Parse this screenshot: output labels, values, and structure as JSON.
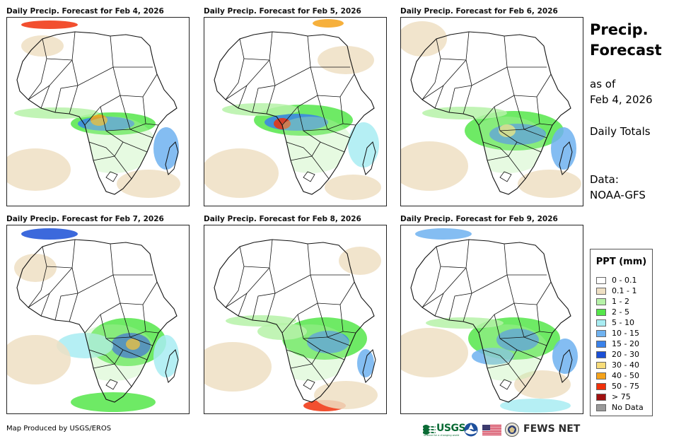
{
  "panels": [
    {
      "title": "Daily Precip. Forecast for Feb 4, 2026"
    },
    {
      "title": "Daily Precip. Forecast for Feb 5, 2026"
    },
    {
      "title": "Daily Precip. Forecast for Feb 6, 2026"
    },
    {
      "title": "Daily Precip. Forecast for Feb 7, 2026"
    },
    {
      "title": "Daily Precip. Forecast for Feb 8, 2026"
    },
    {
      "title": "Daily Precip. Forecast for Feb 9, 2026"
    }
  ],
  "side": {
    "title_line1": "Precip.",
    "title_line2": "Forecast",
    "asof_line1": "as of",
    "asof_line2": "Feb 4, 2026",
    "totals": "Daily Totals",
    "data_line1": "Data:",
    "data_line2": "NOAA-GFS"
  },
  "legend": {
    "title": "PPT (mm)",
    "items": [
      {
        "label": "0 - 0.1",
        "color": "#ffffff"
      },
      {
        "label": "0.1 - 1",
        "color": "#eedfc3"
      },
      {
        "label": "1 - 2",
        "color": "#b6f2a8"
      },
      {
        "label": "2 - 5",
        "color": "#55e64a"
      },
      {
        "label": "5 - 10",
        "color": "#a8ecf2"
      },
      {
        "label": "10 - 15",
        "color": "#6fb2f0"
      },
      {
        "label": "15 - 20",
        "color": "#3a82ea"
      },
      {
        "label": "20 - 30",
        "color": "#1a4fd6"
      },
      {
        "label": "30 - 40",
        "color": "#f7dc7a"
      },
      {
        "label": "40 - 50",
        "color": "#f5a21a"
      },
      {
        "label": "50 - 75",
        "color": "#f0300a"
      },
      {
        "label": "> 75",
        "color": "#a01010"
      },
      {
        "label": "No Data",
        "color": "#9a9a9a"
      }
    ]
  },
  "credit": "Map Produced by USGS/EROS",
  "logos": {
    "usgs": "USGS",
    "usgs_tagline": "science for a changing world",
    "fews": "FEWS NET",
    "noaa_icon": "noaa-logo-icon",
    "flag_icon": "us-flag-icon",
    "seal_icon": "state-department-seal-icon"
  }
}
